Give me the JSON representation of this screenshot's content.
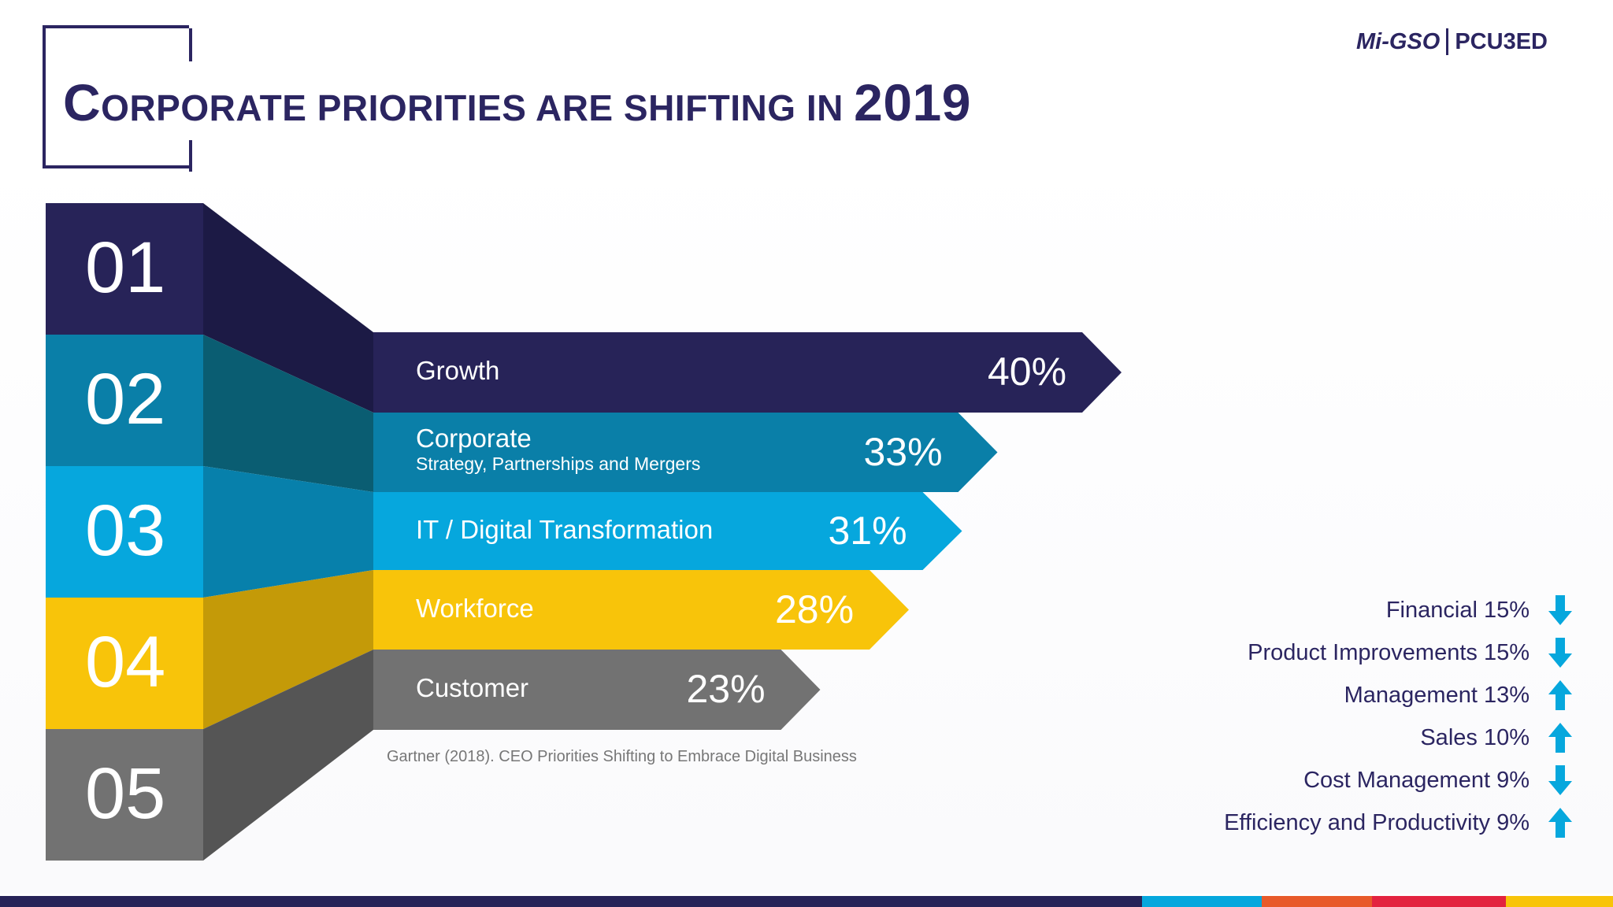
{
  "header": {
    "title_first_letter": "C",
    "title_rest": "ORPORATE PRIORITIES ARE SHIFTING IN ",
    "title_year": "2019"
  },
  "logo": {
    "left": "Mi-GSO",
    "right": "PCU3ED"
  },
  "source": "Gartner (2018). CEO Priorities Shifting to Embrace Digital Business",
  "chart_data": {
    "type": "bar",
    "categories": [
      "Growth",
      "Corporate",
      "IT / Digital Transformation",
      "Workforce",
      "Customer"
    ],
    "subtitles": [
      "",
      "Strategy, Partnerships and Mergers",
      "",
      "",
      ""
    ],
    "ranks": [
      "01",
      "02",
      "03",
      "04",
      "05"
    ],
    "values": [
      40,
      33,
      31,
      28,
      23
    ],
    "value_labels": [
      "40%",
      "33%",
      "31%",
      "28%",
      "23%"
    ],
    "colors": [
      "#272358",
      "#0a7fa8",
      "#06a7dd",
      "#f8c40a",
      "#727272"
    ],
    "side_colors": [
      "#1c1a45",
      "#0a5d72",
      "#0780ab",
      "#c49a08",
      "#555555"
    ],
    "ylim": [
      0,
      40
    ]
  },
  "shifts": [
    {
      "label": "Financial 15%",
      "direction": "down",
      "icon": "arrow-down-icon"
    },
    {
      "label": "Product Improvements 15%",
      "direction": "down",
      "icon": "arrow-down-icon"
    },
    {
      "label": "Management 13%",
      "direction": "up",
      "icon": "arrow-up-icon"
    },
    {
      "label": "Sales 10%",
      "direction": "up",
      "icon": "arrow-up-icon"
    },
    {
      "label": "Cost Management 9%",
      "direction": "down",
      "icon": "arrow-down-icon"
    },
    {
      "label": "Efficiency and Productivity 9%",
      "direction": "up",
      "icon": "arrow-up-icon"
    }
  ],
  "colors": {
    "accent": "#06a7dd",
    "brand": "#2b2561",
    "bottom_bar": [
      "#272358",
      "#06a7dd",
      "#e85a2a",
      "#e3233f",
      "#f8c40a"
    ]
  }
}
